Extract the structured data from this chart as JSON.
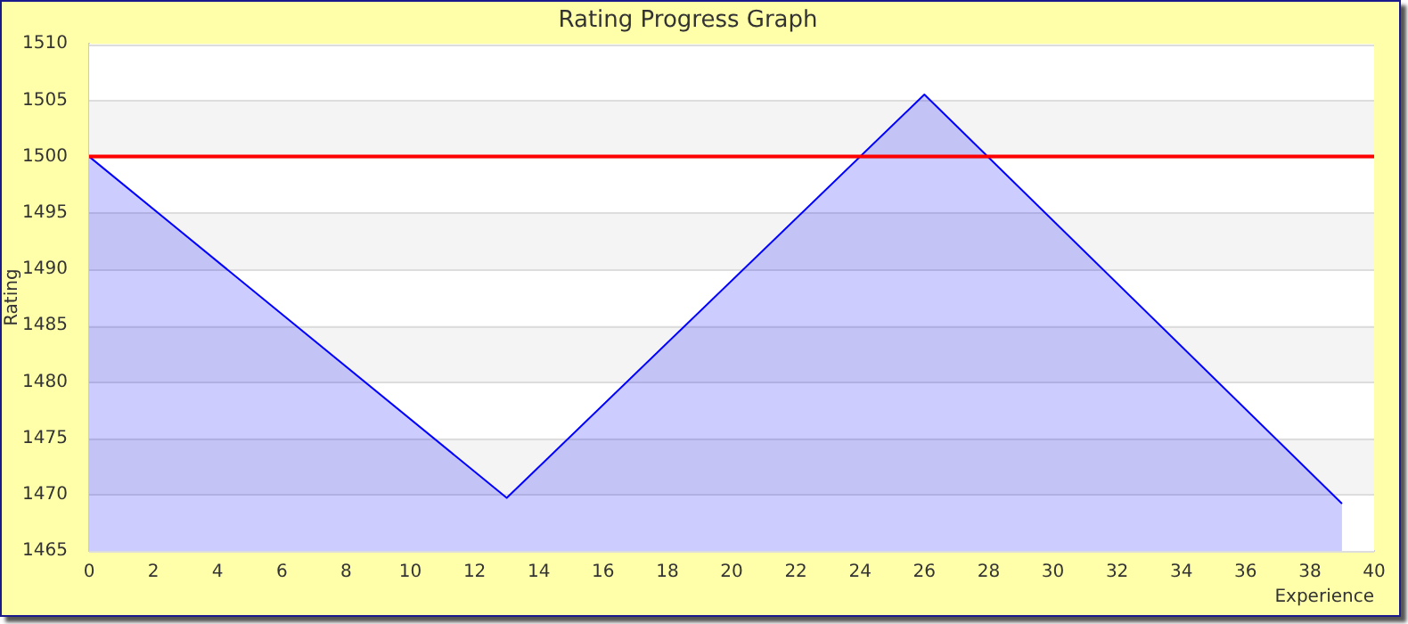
{
  "chart_data": {
    "type": "area",
    "title": "Rating Progress Graph",
    "xlabel": "Experience",
    "ylabel": "Rating",
    "x": [
      0,
      13,
      26,
      39
    ],
    "series": [
      {
        "color": "#0000ff",
        "values": [
          1500,
          1469.7,
          1505.5,
          1469.2
        ]
      }
    ],
    "xlim": [
      0,
      40
    ],
    "xticks": [
      0,
      2,
      4,
      6,
      8,
      10,
      12,
      14,
      16,
      18,
      20,
      22,
      24,
      26,
      28,
      30,
      32,
      34,
      36,
      38,
      40
    ],
    "ylim": [
      1465,
      1510
    ],
    "yticks": [
      1465,
      1470,
      1475,
      1480,
      1485,
      1490,
      1495,
      1500,
      1505,
      1510
    ],
    "ref_lines": [
      {
        "axis": "y",
        "value": 1500,
        "color": "#ff0000"
      }
    ],
    "grid": "y",
    "legend": false,
    "marker": "none"
  }
}
